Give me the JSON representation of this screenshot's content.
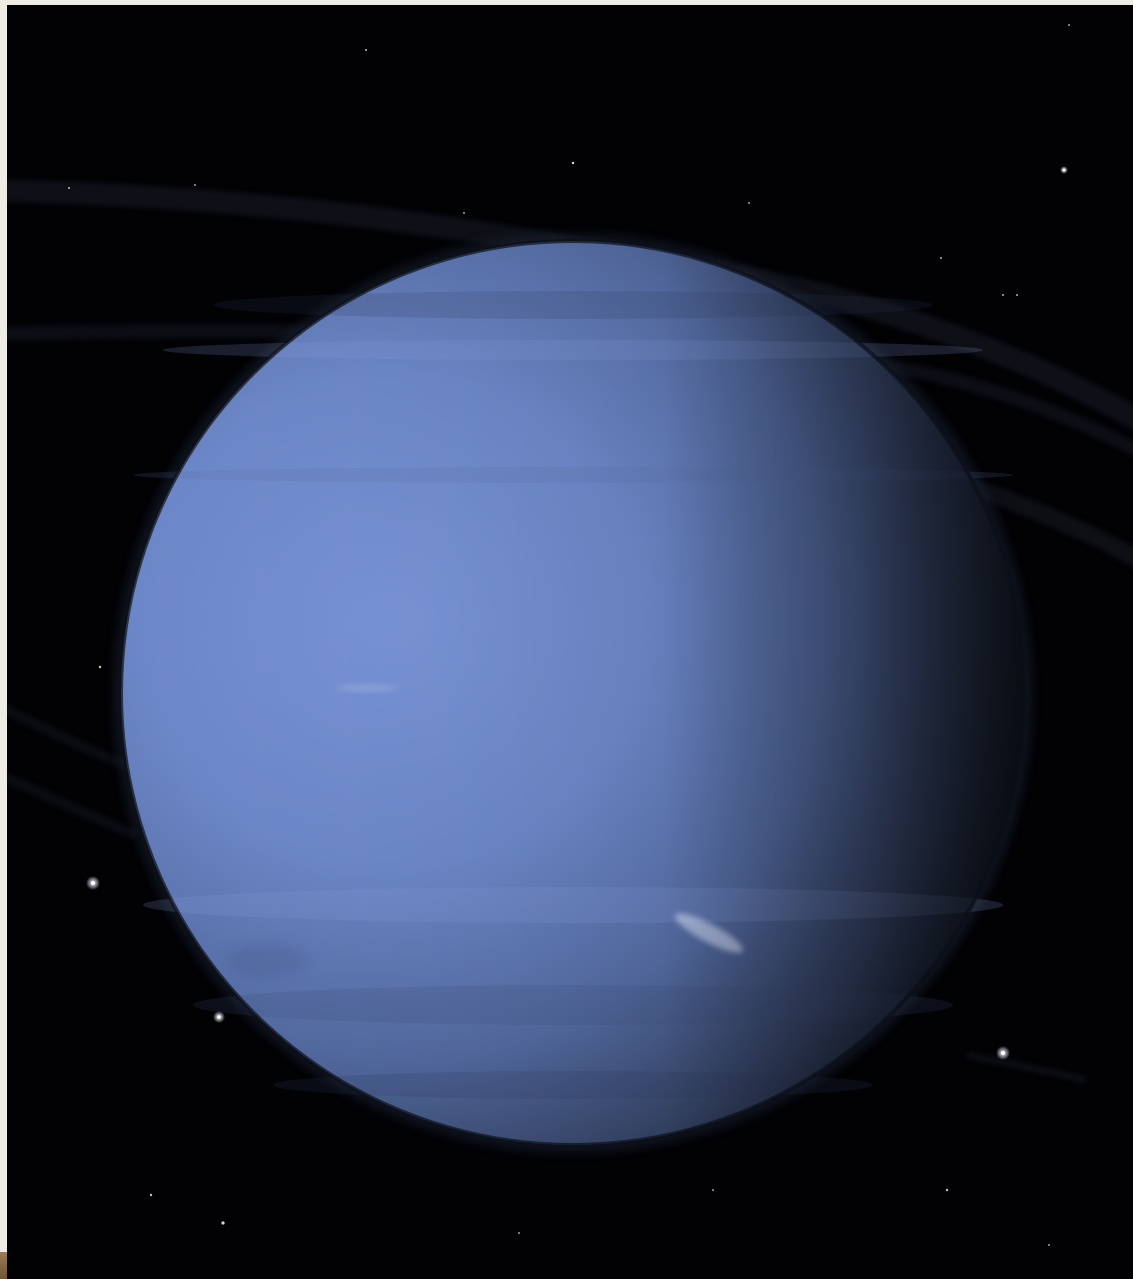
{
  "scene": {
    "subject_icon": "planet-neptune-icon",
    "ring_icon": "planetary-ring-icon",
    "star_icon": "star-icon",
    "colors": {
      "space": "#020205",
      "planet_lit": "#7590d4",
      "planet_mid": "#5d76ae",
      "planet_shadow": "#141a28",
      "page_border": "#efece6",
      "corner_strip": "#8d6f4b",
      "ring": "#8791a6",
      "cloud": "#dfe8ff"
    }
  }
}
